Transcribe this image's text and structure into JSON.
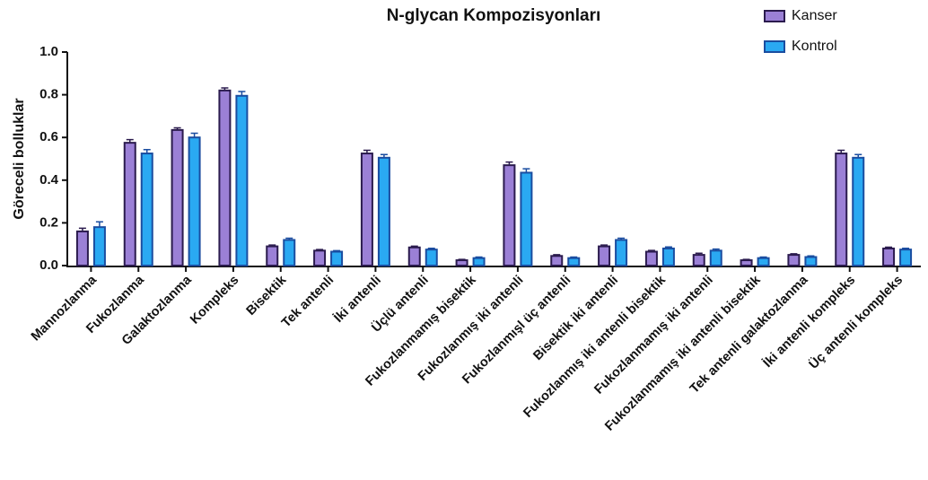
{
  "chart_data": {
    "type": "bar",
    "title": "N-glycan Kompozisyonları",
    "ylabel": "Göreceli bolluklar",
    "categories": [
      "Mannozlanma",
      "Fukozlanma",
      "Galaktozlanma",
      "Kompleks",
      "Bisektik",
      "Tek antenli",
      "İki antenli",
      "Üçlü antenli",
      "Fukozlanmamış bisektik",
      "Fukozlanmış iki antenli",
      "Fukozlanmışl üç antenli",
      "Bisektik iki antenli",
      "Fukozlanmış iki antenli bisektik",
      "Fukozlanmamış iki antenli",
      "Fukozlanmamış iki antenli bisektik",
      "Tek antenli galaktozlanma",
      "İki antenli kompleks",
      "Üç antenli kompleks"
    ],
    "series": [
      {
        "name": "Kanser",
        "color": "#9b80d6",
        "stroke": "#2b1b4e",
        "values": [
          0.16,
          0.575,
          0.635,
          0.82,
          0.09,
          0.07,
          0.525,
          0.085,
          0.025,
          0.47,
          0.045,
          0.09,
          0.065,
          0.05,
          0.025,
          0.05,
          0.525,
          0.08
        ],
        "errors": [
          0.015,
          0.015,
          0.01,
          0.012,
          0.006,
          0.005,
          0.015,
          0.006,
          0.004,
          0.015,
          0.006,
          0.006,
          0.006,
          0.008,
          0.004,
          0.005,
          0.015,
          0.006
        ]
      },
      {
        "name": "Kontrol",
        "color": "#2aa9f2",
        "stroke": "#1a4da0",
        "values": [
          0.18,
          0.525,
          0.6,
          0.795,
          0.12,
          0.065,
          0.505,
          0.075,
          0.035,
          0.435,
          0.035,
          0.12,
          0.08,
          0.07,
          0.035,
          0.04,
          0.505,
          0.075
        ],
        "errors": [
          0.025,
          0.018,
          0.02,
          0.02,
          0.008,
          0.005,
          0.015,
          0.006,
          0.005,
          0.018,
          0.005,
          0.008,
          0.007,
          0.007,
          0.005,
          0.005,
          0.015,
          0.006
        ]
      }
    ],
    "ylim": [
      0,
      1.0
    ],
    "yticks": [
      {
        "value": 0,
        "label": "0.0"
      },
      0.2,
      0.4,
      0.6,
      0.8,
      {
        "value": 1.0,
        "label": "1.0"
      }
    ],
    "legend": "top-right"
  }
}
